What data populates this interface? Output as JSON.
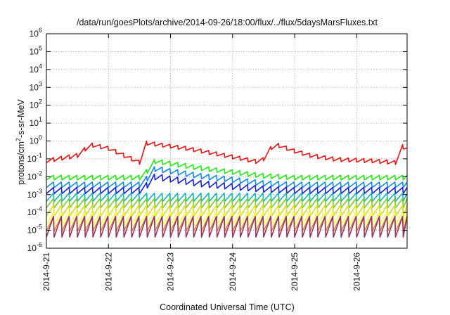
{
  "chart_data": {
    "type": "line",
    "title": "/data/run/goesPlots/archive/2014-09-26/18:00/flux/../flux/5daysMarsFluxes.txt",
    "xlabel": "Coordinated Universal Time (UTC)",
    "ylabel": "protons/cm²-s-sr-MeV",
    "ylabel_parts": [
      "protons/cm",
      "2",
      "-s-sr-MeV"
    ],
    "y_scale": "log",
    "ylim": [
      1e-06,
      1000000.0
    ],
    "y_ticks": [
      {
        "base": "10",
        "exp": "-6"
      },
      {
        "base": "10",
        "exp": "-5"
      },
      {
        "base": "10",
        "exp": "-4"
      },
      {
        "base": "10",
        "exp": "-3"
      },
      {
        "base": "10",
        "exp": "-2"
      },
      {
        "base": "10",
        "exp": "-1"
      },
      {
        "base": "10",
        "exp": "0"
      },
      {
        "base": "10",
        "exp": "1"
      },
      {
        "base": "10",
        "exp": "2"
      },
      {
        "base": "10",
        "exp": "3"
      },
      {
        "base": "10",
        "exp": "4"
      },
      {
        "base": "10",
        "exp": "5"
      },
      {
        "base": "10",
        "exp": "6"
      }
    ],
    "xlim": [
      "2014-09-21",
      "2014-09-26 19:30"
    ],
    "x_ticks": [
      "2014-9-21",
      "2014-9-22",
      "2014-9-23",
      "2014-9-24",
      "2014-9-25",
      "2014-9-26"
    ],
    "grid": true,
    "legend": "none",
    "series": [
      {
        "color": "#ee1111",
        "shape": "sawtooth",
        "cycle_hours": 3,
        "drop_fraction": 0.4,
        "envelope": {
          "x": [
            "2014-09-21 00:00",
            "2014-09-21 12:00",
            "2014-09-21 17:00",
            "2014-09-22 00:00",
            "2014-09-22 14:00",
            "2014-09-22 14:30",
            "2014-09-23 06:00",
            "2014-09-23 12:00",
            "2014-09-24 04:00",
            "2014-09-24 11:00",
            "2014-09-24 16:00",
            "2014-09-25 00:00",
            "2014-09-25 06:00",
            "2014-09-25 16:00",
            "2014-09-26 06:00",
            "2014-09-26 15:00",
            "2014-09-26 16:00",
            "2014-09-26 19:30"
          ],
          "y": [
            0.1,
            0.2,
            0.8,
            0.5,
            0.06,
            1.0,
            0.5,
            0.35,
            0.13,
            0.08,
            0.9,
            0.35,
            0.2,
            0.12,
            0.1,
            0.08,
            1.0,
            0.4
          ]
        }
      },
      {
        "color": "#22ee11",
        "shape": "sawtooth",
        "cycle_hours": 3,
        "drop_fraction": 0.45,
        "envelope": {
          "x": [
            "2014-09-21 00:00",
            "2014-09-22 13:00",
            "2014-09-22 18:00",
            "2014-09-23 12:00",
            "2014-09-24 12:00",
            "2014-09-25 00:00",
            "2014-09-26 19:30"
          ],
          "y": [
            0.012,
            0.012,
            0.1,
            0.04,
            0.015,
            0.012,
            0.012
          ]
        }
      },
      {
        "color": "#1188ee",
        "shape": "sawtooth",
        "cycle_hours": 3,
        "drop_fraction": 0.5,
        "envelope": {
          "x": [
            "2014-09-21 00:00",
            "2014-09-22 13:00",
            "2014-09-22 18:00",
            "2014-09-23 12:00",
            "2014-09-24 12:00",
            "2014-09-25 00:00",
            "2014-09-26 19:30"
          ],
          "y": [
            0.005,
            0.005,
            0.04,
            0.015,
            0.006,
            0.005,
            0.005
          ]
        }
      },
      {
        "color": "#1122dd",
        "shape": "sawtooth",
        "cycle_hours": 3,
        "drop_fraction": 0.55,
        "envelope": {
          "x": [
            "2014-09-21 00:00",
            "2014-09-22 13:00",
            "2014-09-22 18:00",
            "2014-09-23 12:00",
            "2014-09-24 12:00",
            "2014-09-25 00:00",
            "2014-09-26 19:30"
          ],
          "y": [
            0.0025,
            0.0025,
            0.015,
            0.006,
            0.003,
            0.0025,
            0.0025
          ]
        }
      },
      {
        "color": "#11bbbb",
        "shape": "sawtooth",
        "cycle_hours": 3,
        "drop_fraction": 0.65,
        "envelope": {
          "x": [
            "2014-09-21 00:00",
            "2014-09-26 19:30"
          ],
          "y": [
            0.0012,
            0.0012
          ]
        }
      },
      {
        "color": "#77cc22",
        "shape": "sawtooth",
        "cycle_hours": 3,
        "drop_fraction": 0.7,
        "envelope": {
          "x": [
            "2014-09-21 00:00",
            "2014-09-26 19:30"
          ],
          "y": [
            0.0006,
            0.0006
          ]
        }
      },
      {
        "color": "#dddd11",
        "shape": "sawtooth",
        "cycle_hours": 3,
        "drop_fraction": 0.75,
        "envelope": {
          "x": [
            "2014-09-21 00:00",
            "2014-09-26 19:30"
          ],
          "y": [
            0.00025,
            0.00025
          ]
        }
      },
      {
        "color": "#ffff33",
        "shape": "sawtooth",
        "cycle_hours": 3,
        "drop_fraction": 0.8,
        "envelope": {
          "x": [
            "2014-09-21 00:00",
            "2014-09-26 19:30"
          ],
          "y": [
            0.0001,
            0.0001
          ]
        }
      },
      {
        "color": "#dd8822",
        "shape": "sawtooth",
        "cycle_hours": 3,
        "drop_fraction": 0.85,
        "envelope": {
          "x": [
            "2014-09-21 00:00",
            "2014-09-26 19:30"
          ],
          "y": [
            6e-05,
            6e-05
          ]
        }
      },
      {
        "color": "#993366",
        "shape": "sawtooth",
        "cycle_hours": 3,
        "drop_fraction": 0.93,
        "envelope": {
          "x": [
            "2014-09-21 00:00",
            "2014-09-26 19:30"
          ],
          "y": [
            6e-05,
            6e-05
          ]
        }
      }
    ]
  }
}
